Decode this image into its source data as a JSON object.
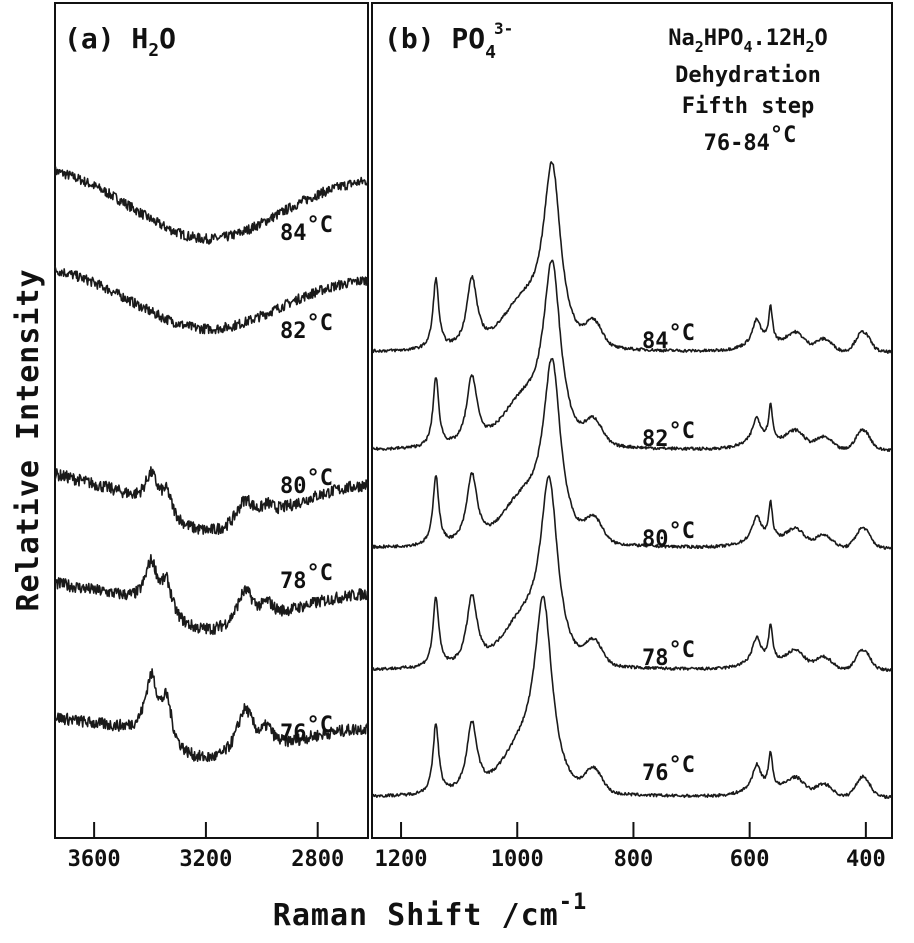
{
  "figure": {
    "ylabel": "Relative Intensity",
    "xlabel": "Raman Shift /cm",
    "xlabel_superscript": "-1"
  },
  "chart_data": [
    {
      "type": "line",
      "panel_label": "(a) H",
      "panel_label_sub": "2",
      "panel_label_tail": "O",
      "xlim": [
        3740,
        2620
      ],
      "x_ticks": [
        3600,
        3200,
        2800
      ],
      "x_tick_labels": [
        "3600",
        "3200",
        "2800"
      ],
      "grid": false,
      "series": [
        {
          "name": "84°C",
          "temp": "84",
          "unit": "°C"
        },
        {
          "name": "82°C",
          "temp": "82",
          "unit": "°C"
        },
        {
          "name": "80°C",
          "temp": "80",
          "unit": "°C"
        },
        {
          "name": "78°C",
          "temp": "78",
          "unit": "°C"
        },
        {
          "name": "76°C",
          "temp": "76",
          "unit": "°C"
        }
      ]
    },
    {
      "type": "line",
      "panel_label": "(b) PO",
      "panel_label_sub": "4",
      "panel_label_sup": "3-",
      "xlim": [
        1250,
        355
      ],
      "x_ticks": [
        1200,
        1000,
        800,
        600,
        400
      ],
      "x_tick_labels": [
        "1200",
        "1000",
        "800",
        "600",
        "400"
      ],
      "grid": false,
      "annotation": {
        "line1_a": "Na",
        "line1_sub1": "2",
        "line1_b": "HPO",
        "line1_sub2": "4",
        "line1_c": ".12H",
        "line1_sub3": "2",
        "line1_d": "O",
        "line2": "Dehydration",
        "line3": "Fifth step",
        "line4_a": "76-84",
        "line4_b": "°C"
      },
      "series": [
        {
          "name": "84°C",
          "temp": "84",
          "unit": "°C"
        },
        {
          "name": "82°C",
          "temp": "82",
          "unit": "°C"
        },
        {
          "name": "80°C",
          "temp": "80",
          "unit": "°C"
        },
        {
          "name": "78°C",
          "temp": "78",
          "unit": "°C"
        },
        {
          "name": "76°C",
          "temp": "76",
          "unit": "°C"
        }
      ]
    }
  ]
}
